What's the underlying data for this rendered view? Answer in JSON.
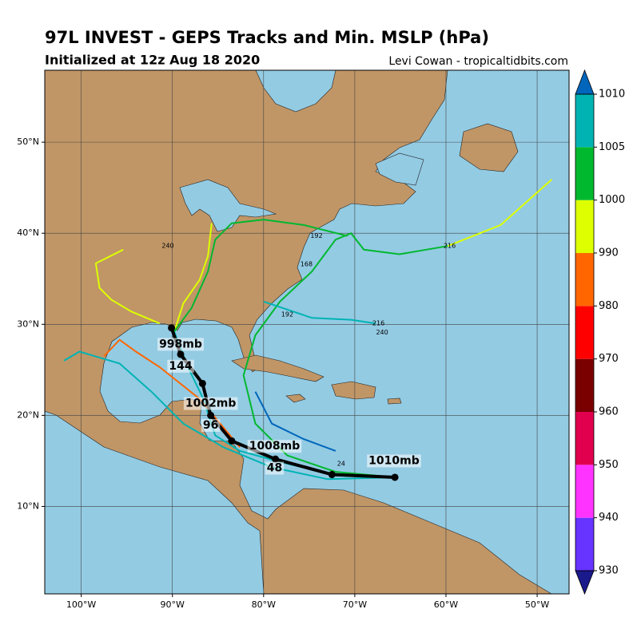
{
  "chart_data": {
    "type": "track-map",
    "title": "97L INVEST - GEPS Tracks and Min. MSLP (hPa)",
    "subtitle": "Initialized at 12z Aug 18 2020",
    "credit": "Levi Cowan - tropicaltidbits.com",
    "xlim": [
      -104,
      -46.5
    ],
    "ylim": [
      0.4,
      57.9
    ],
    "xticks": [
      {
        "value": -100,
        "label": "100°W"
      },
      {
        "value": -90,
        "label": "90°W"
      },
      {
        "value": -80,
        "label": "80°W"
      },
      {
        "value": -70,
        "label": "70°W"
      },
      {
        "value": -60,
        "label": "60°W"
      },
      {
        "value": -50,
        "label": "50°W"
      }
    ],
    "yticks": [
      {
        "value": 10,
        "label": "10°N"
      },
      {
        "value": 20,
        "label": "20°N"
      },
      {
        "value": 30,
        "label": "30°N"
      },
      {
        "value": 40,
        "label": "40°N"
      },
      {
        "value": 50,
        "label": "50°N"
      }
    ],
    "grid": true,
    "tracks": [
      {
        "color": "#00b3b3",
        "lon": [
          -65.6,
          -72.1,
          -78.2,
          -82.6,
          -85.3,
          -86.6,
          -88.3,
          -89.8
        ],
        "lat": [
          13.2,
          13.4,
          14.9,
          16.1,
          17.8,
          21.8,
          25.3,
          29.2
        ]
      },
      {
        "color": "#00b3b3",
        "lon": [
          -65.6,
          -73.0,
          -79.1,
          -84.4,
          -88.8,
          -92.3,
          -95.8,
          -100.2,
          -101.9
        ],
        "lat": [
          13.2,
          13.0,
          14.3,
          16.5,
          19.1,
          22.6,
          25.7,
          27.0,
          26.0
        ]
      },
      {
        "color": "#00b82e",
        "lon": [
          -65.6,
          -72.1,
          -77.4,
          -80.9,
          -82.2,
          -80.9,
          -78.2,
          -74.7,
          -72.1,
          -70.4,
          -69.0,
          -65.1,
          -59.8
        ],
        "lat": [
          13.2,
          13.8,
          15.6,
          19.1,
          24.4,
          28.8,
          32.5,
          35.8,
          39.3,
          40.0,
          38.2,
          37.7,
          38.6
        ]
      },
      {
        "color": "#ddff00",
        "lon": [
          -59.8,
          -54.0,
          -48.4
        ],
        "lat": [
          38.6,
          40.9,
          45.9
        ]
      },
      {
        "color": "#ff6600",
        "lon": [
          -82.6,
          -87.0,
          -91.4,
          -94.0,
          -95.8,
          -97.5
        ],
        "lat": [
          16.5,
          21.8,
          25.3,
          27.0,
          28.3,
          26.5
        ]
      },
      {
        "color": "#ddff00",
        "lon": [
          -89.8,
          -88.8,
          -87.0,
          -86.1,
          -85.7
        ],
        "lat": [
          29.2,
          32.3,
          34.9,
          37.5,
          41.1
        ]
      },
      {
        "color": "#00b82e",
        "lon": [
          -89.8,
          -87.9,
          -86.1,
          -85.3,
          -83.5,
          -80.0,
          -75.6,
          -70.8
        ],
        "lat": [
          29.2,
          31.8,
          35.8,
          39.3,
          41.1,
          41.5,
          40.9,
          39.7
        ]
      },
      {
        "color": "#0066bb",
        "lon": [
          -80.9,
          -79.1,
          -75.6,
          -72.1
        ],
        "lat": [
          22.6,
          19.1,
          17.4,
          16.1
        ]
      },
      {
        "color": "#00b3b3",
        "lon": [
          -80.0,
          -74.7,
          -70.4,
          -67.7
        ],
        "lat": [
          32.5,
          30.7,
          30.5,
          30.1
        ]
      },
      {
        "color": "#ddff00",
        "lon": [
          -91.4,
          -94.5,
          -96.7,
          -98.0,
          -98.4,
          -95.4
        ],
        "lat": [
          30.1,
          31.4,
          32.7,
          34.0,
          36.7,
          38.2
        ]
      }
    ],
    "track_labels": [
      {
        "text": "216",
        "lon": -59.6,
        "lat": 38.6
      },
      {
        "text": "192",
        "lon": -74.2,
        "lat": 39.7
      },
      {
        "text": "168",
        "lon": -75.3,
        "lat": 36.6
      },
      {
        "text": "240",
        "lon": -90.5,
        "lat": 38.6
      },
      {
        "text": "216",
        "lon": -67.4,
        "lat": 30.1
      },
      {
        "text": "240",
        "lon": -67.0,
        "lat": 29.1
      },
      {
        "text": "192",
        "lon": -77.4,
        "lat": 31.1
      },
      {
        "text": "24",
        "lon": -71.5,
        "lat": 14.7
      }
    ],
    "mean_track": {
      "lon": [
        -65.6,
        -72.5,
        -78.7,
        -83.5,
        -85.8,
        -86.7,
        -89.1,
        -90.1
      ],
      "lat": [
        13.2,
        13.5,
        15.2,
        17.2,
        20.0,
        23.5,
        26.7,
        29.6
      ],
      "annotations": [
        {
          "text": "1010mb",
          "lon": -65.7,
          "lat": 15.0
        },
        {
          "text": "1008mb",
          "lon": -78.8,
          "lat": 16.6
        },
        {
          "text": "48",
          "lon": -78.8,
          "lat": 14.2
        },
        {
          "text": "1002mb",
          "lon": -85.8,
          "lat": 21.3
        },
        {
          "text": "96",
          "lon": -85.8,
          "lat": 18.9
        },
        {
          "text": "998mb",
          "lon": -89.1,
          "lat": 27.8
        },
        {
          "text": "144",
          "lon": -89.1,
          "lat": 25.4
        }
      ]
    },
    "colorbar": {
      "ticks": [
        930,
        940,
        950,
        960,
        970,
        980,
        990,
        1000,
        1005,
        1010
      ],
      "colors": [
        "#6633ff",
        "#ff33ff",
        "#e0004e",
        "#7a0000",
        "#ff0000",
        "#ff6600",
        "#ddff00",
        "#00b82e",
        "#00b3b3"
      ],
      "under_color": "#1a1a8c",
      "over_color": "#0066bb"
    }
  }
}
